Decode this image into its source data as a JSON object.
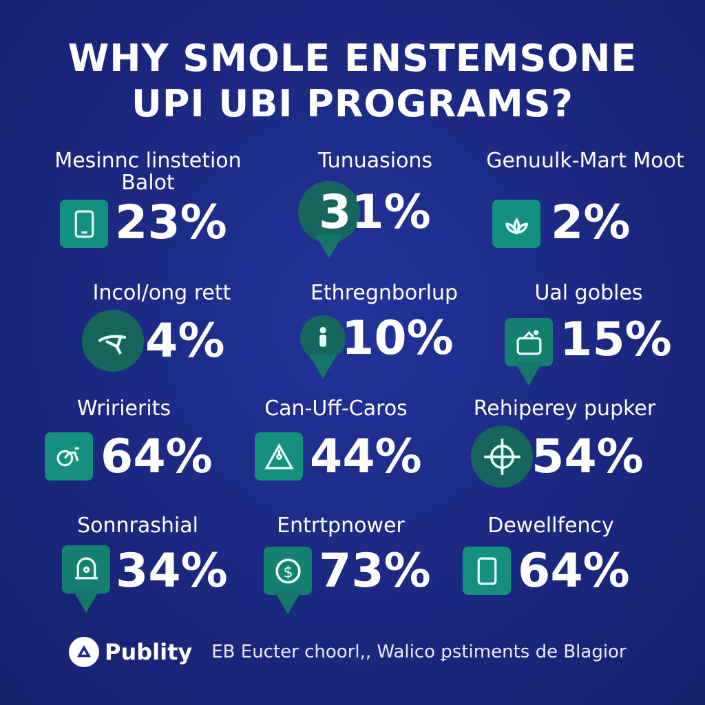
{
  "title": {
    "line1": "WHY SMOLE ENSTEMSONE",
    "line2": "UPI UBI PROGRAMS?"
  },
  "stats": [
    {
      "label": "Mesinnc linstetion Balot",
      "value": "23%",
      "icon": "tablet-icon"
    },
    {
      "label": "Tunuasions",
      "value": "31%",
      "icon": "map-pin-icon"
    },
    {
      "label": "Genuulk-Mart Moot",
      "value": "2%",
      "icon": "lotus-icon"
    },
    {
      "label": "Incol/ong rett",
      "value": "4%",
      "icon": "gauge-icon"
    },
    {
      "label": "Ethregnborlup",
      "value": "10%",
      "icon": "person-pin-icon"
    },
    {
      "label": "Ual gobles",
      "value": "15%",
      "icon": "basket-icon"
    },
    {
      "label": "Wririerits",
      "value": "64%",
      "icon": "bicycle-icon"
    },
    {
      "label": "Can-Uff-Caros",
      "value": "44%",
      "icon": "warning-triangle-icon"
    },
    {
      "label": "Rehiperey pupker",
      "value": "54%",
      "icon": "crosshair-icon"
    },
    {
      "label": "Sonnrashial",
      "value": "34%",
      "icon": "bell-pin-icon"
    },
    {
      "label": "Entrtpnower",
      "value": "73%",
      "icon": "dollar-coin-icon"
    },
    {
      "label": "Dewellfency",
      "value": "64%",
      "icon": "tablet-icon"
    }
  ],
  "footer": {
    "brand": "Publity",
    "text": "EB Eucter choorl,, Walico ꝑstiments de Blagior"
  },
  "colors": {
    "background": "#1c2a85",
    "icon_teal": "#14907f",
    "icon_dark_teal": "#17665e",
    "text": "#ffffff"
  }
}
